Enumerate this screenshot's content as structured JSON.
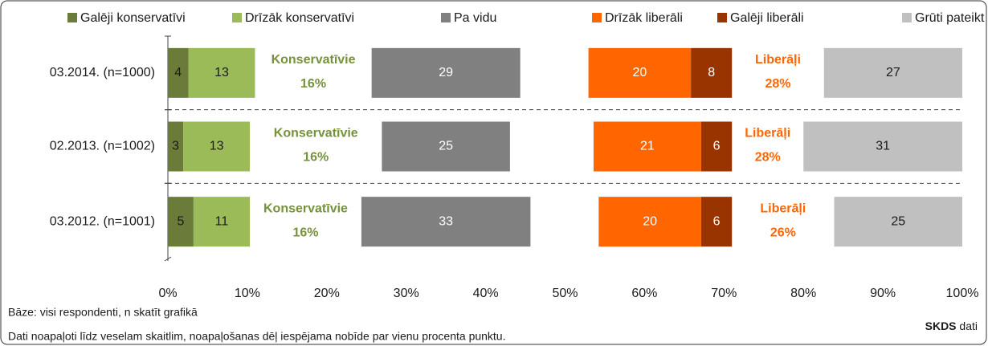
{
  "chart_data": {
    "type": "bar",
    "orientation": "horizontal",
    "categories": [
      "03.2014. (n=1000)",
      "02.2013. (n=1002)",
      "03.2012. (n=1001)"
    ],
    "series": [
      {
        "name": "Galēji konservatīvi",
        "color": "#6b7b3a",
        "label_color": "#1a1a1a",
        "values": [
          4,
          3,
          5
        ]
      },
      {
        "name": "Drīzāk konservatīvi",
        "color": "#9bbb59",
        "label_color": "#1a1a1a",
        "values": [
          13,
          13,
          11
        ]
      },
      {
        "name": "Pa vidu",
        "color": "#808080",
        "label_color": "#ffffff",
        "values": [
          29,
          25,
          33
        ]
      },
      {
        "name": "Drīzāk liberāli",
        "color": "#ff6600",
        "label_color": "#ffffff",
        "values": [
          20,
          21,
          20
        ]
      },
      {
        "name": "Galēji liberāli",
        "color": "#993300",
        "label_color": "#ffffff",
        "values": [
          8,
          6,
          6
        ]
      },
      {
        "name": "Grūti pateikt",
        "color": "#c0c0c0",
        "label_color": "#1a1a1a",
        "values": [
          27,
          31,
          25
        ]
      }
    ],
    "summaries": [
      {
        "name": "Konservatīvie",
        "color": "#76923c",
        "values": [
          16,
          16,
          16
        ],
        "value_labels": [
          "16%",
          "16%",
          "16%"
        ]
      },
      {
        "name": "Liberāļi",
        "color": "#ff6600",
        "values": [
          28,
          28,
          26
        ],
        "value_labels": [
          "28%",
          "28%",
          "26%"
        ]
      }
    ],
    "xlim": [
      0,
      100
    ],
    "xticks": [
      {
        "value": 0,
        "label": "0%"
      },
      {
        "value": 10,
        "label": "10%"
      },
      {
        "value": 20,
        "label": "20%"
      },
      {
        "value": 30,
        "label": "30%"
      },
      {
        "value": 40,
        "label": "40%"
      },
      {
        "value": 50,
        "label": "50%"
      },
      {
        "value": 60,
        "label": "60%"
      },
      {
        "value": 70,
        "label": "70%"
      },
      {
        "value": 80,
        "label": "80%"
      },
      {
        "value": 90,
        "label": "90%"
      },
      {
        "value": 100,
        "label": "100%"
      }
    ],
    "legend": "top",
    "notes": [
      "Bāze: visi respondenti, n skatīt grafikā",
      "Dati noapaļoti līdz veselam skaitlim, noapaļošanas dēļ iespējama nobīde par vienu procenta punktu."
    ],
    "source": {
      "name": "SKDS",
      "suffix": "dati"
    }
  }
}
